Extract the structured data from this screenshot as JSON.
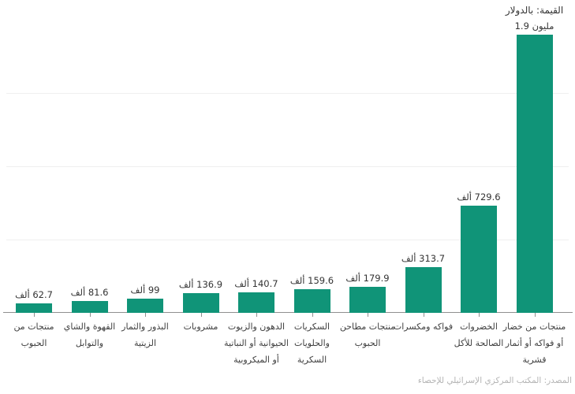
{
  "chart_data": {
    "type": "bar",
    "title": "القيمة: بالدولار",
    "source": "المصدر: المكتب المركزي الإسرائيلي للإحصاء",
    "bar_color": "#109478",
    "unit_word_thousand": "ألف",
    "unit_word_million": "مليون",
    "ylim_thousands": [
      0,
      2000
    ],
    "gridline_step_thousands": 500,
    "y_axis_tick_labels": "none",
    "legend": "none",
    "bars": [
      {
        "label": "منتجات من الحبوب",
        "label_lines": [
          "منتجات من",
          "الحبوب"
        ],
        "value_thousands": 62.7,
        "value_label": "62.7 ألف",
        "value_dir": "rtl"
      },
      {
        "label": "القهوة والشاي والتوابل",
        "label_lines": [
          "القهوة والشاي",
          "والتوابل"
        ],
        "value_thousands": 81.6,
        "value_label": "81.6 ألف",
        "value_dir": "rtl"
      },
      {
        "label": "البذور والثمار الزيتية",
        "label_lines": [
          "البذور والثمار",
          "الزيتية"
        ],
        "value_thousands": 99,
        "value_label": "99 ألف",
        "value_dir": "rtl"
      },
      {
        "label": "مشروبات",
        "label_lines": [
          "مشروبات"
        ],
        "value_thousands": 136.9,
        "value_label": "136.9 ألف",
        "value_dir": "rtl"
      },
      {
        "label": "الدهون والزيوت الحيوانية أو النباتية أو الميكروبية",
        "label_lines": [
          "الدهون والزيوت",
          "الحيوانية أو النباتية",
          "أو الميكروبية"
        ],
        "value_thousands": 140.7,
        "value_label": "140.7 ألف",
        "value_dir": "rtl"
      },
      {
        "label": "السكريات والحلويات السكرية",
        "label_lines": [
          "السكريات",
          "والحلويات",
          "السكرية"
        ],
        "value_thousands": 159.6,
        "value_label": "159.6 ألف",
        "value_dir": "rtl"
      },
      {
        "label": "منتجات مطاحن الحبوب",
        "label_lines": [
          "منتجات مطاحن",
          "الحبوب"
        ],
        "value_thousands": 179.9,
        "value_label": "179.9 ألف",
        "value_dir": "rtl"
      },
      {
        "label": "فواكه ومكسرات",
        "label_lines": [
          "فواكه ومكسرات"
        ],
        "value_thousands": 313.7,
        "value_label": "313.7 ألف",
        "value_dir": "rtl"
      },
      {
        "label": "الخضروات الصالحة للأكل",
        "label_lines": [
          "الخضروات",
          "الصالحة للأكل"
        ],
        "value_thousands": 729.6,
        "value_label": "729.6 ألف",
        "value_dir": "rtl"
      },
      {
        "label": "منتجات من خضار أو فواكه أو أثمار قشرية",
        "label_lines": [
          "منتجات من خضار",
          "أو فواكه أو أثمار",
          "قشرية"
        ],
        "value_thousands": 1900,
        "value_label": "1.9 مليون",
        "value_dir": "ltr"
      }
    ]
  }
}
